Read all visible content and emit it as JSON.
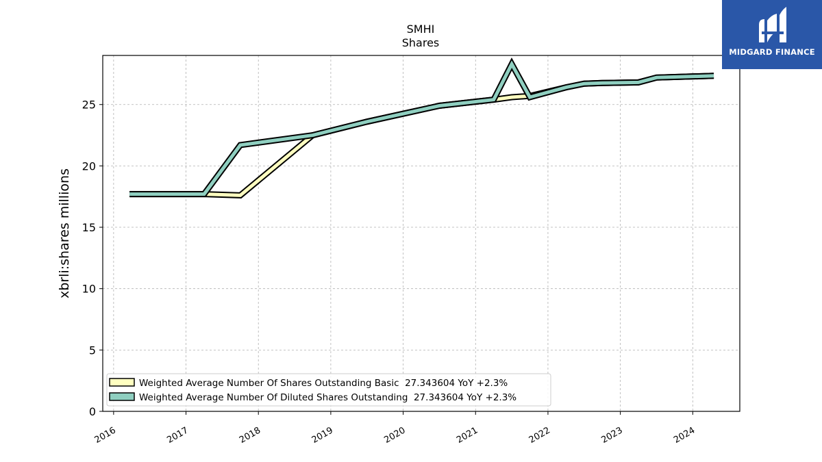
{
  "colors": {
    "basic": "#ffffc0",
    "diluted": "#8fcfc0",
    "outline": "#000000",
    "grid": "#b0b0b0",
    "logo_bg": "#2a57a8"
  },
  "logo": {
    "text": "MIDGARD FINANCE"
  },
  "chart_data": {
    "type": "line",
    "title": "SMHI",
    "subtitle": "Shares",
    "ylabel": "xbrli:shares millions",
    "xlim": [
      2015.85,
      2024.65
    ],
    "ylim": [
      0,
      29
    ],
    "yticks": [
      0,
      5,
      10,
      15,
      20,
      25
    ],
    "xticks": [
      2016,
      2017,
      2018,
      2019,
      2020,
      2021,
      2022,
      2023,
      2024
    ],
    "grid": true,
    "legend_position": "lower-left",
    "series": [
      {
        "name": "Weighted Average Number Of Shares Outstanding Basic",
        "legend": "Weighted Average Number Of Shares Outstanding Basic  27.343604 YoY +2.3%",
        "color_key": "basic",
        "x": [
          2016.22,
          2017.25,
          2017.75,
          2018.75,
          2019.5,
          2020.5,
          2021.25,
          2021.5,
          2021.75,
          2022.25,
          2022.5,
          2022.75,
          2023.25,
          2023.5,
          2024.29
        ],
        "y": [
          17.7,
          17.7,
          17.6,
          22.5,
          23.6,
          24.9,
          25.4,
          25.6,
          25.7,
          26.4,
          26.7,
          26.75,
          26.8,
          27.2,
          27.34
        ]
      },
      {
        "name": "Weighted Average Number Of Diluted Shares Outstanding",
        "legend": "Weighted Average Number Of Diluted Shares Outstanding  27.343604 YoY +2.3%",
        "color_key": "diluted",
        "x": [
          2016.22,
          2017.25,
          2017.75,
          2018.75,
          2019.5,
          2020.5,
          2021.25,
          2021.5,
          2021.75,
          2022.25,
          2022.5,
          2022.75,
          2023.25,
          2023.5,
          2024.29
        ],
        "y": [
          17.7,
          17.7,
          21.7,
          22.5,
          23.6,
          24.9,
          25.4,
          28.3,
          25.6,
          26.4,
          26.7,
          26.75,
          26.8,
          27.2,
          27.34
        ]
      }
    ]
  }
}
